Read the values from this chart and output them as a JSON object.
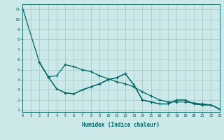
{
  "xlabel": "Humidex (Indice chaleur)",
  "bg_color": "#cce8e8",
  "grid_color": "#a8cccc",
  "line_color": "#006666",
  "curve1_x": [
    0,
    1,
    2,
    3,
    4,
    5,
    6,
    7,
    8,
    9,
    10,
    11,
    12,
    13,
    14,
    15,
    16,
    17,
    18,
    19,
    20,
    21,
    22,
    23
  ],
  "curve1_y": [
    11.2,
    8.4,
    5.7,
    4.3,
    3.1,
    2.7,
    2.6,
    3.0,
    3.3,
    3.6,
    4.0,
    4.2,
    4.6,
    3.5,
    2.0,
    1.8,
    1.6,
    1.6,
    2.0,
    2.0,
    1.6,
    1.5,
    1.5,
    1.1
  ],
  "curve2_x": [
    2,
    3,
    4,
    5,
    6,
    7,
    8,
    9,
    10,
    11,
    12,
    13,
    14,
    15,
    16,
    17,
    18,
    19,
    20,
    21,
    22,
    23
  ],
  "curve2_y": [
    5.7,
    4.3,
    4.4,
    5.5,
    5.3,
    5.0,
    4.8,
    4.4,
    4.1,
    3.8,
    3.6,
    3.3,
    2.8,
    2.4,
    2.0,
    1.8,
    1.8,
    1.8,
    1.7,
    1.6,
    1.5,
    1.1
  ],
  "curve3_x": [
    2,
    3,
    4,
    5,
    6,
    7,
    8,
    9,
    10,
    11,
    12,
    13,
    14,
    15,
    16,
    17,
    18,
    19,
    20,
    21,
    22,
    23
  ],
  "curve3_y": [
    5.7,
    4.3,
    3.1,
    2.7,
    2.6,
    3.0,
    3.3,
    3.6,
    4.0,
    4.2,
    4.6,
    3.5,
    2.0,
    1.8,
    1.6,
    1.6,
    2.0,
    2.0,
    1.6,
    1.5,
    1.5,
    1.1
  ],
  "xlim": [
    0,
    23
  ],
  "ylim": [
    0.8,
    11.5
  ],
  "yticks": [
    1,
    2,
    3,
    4,
    5,
    6,
    7,
    8,
    9,
    10,
    11
  ],
  "xticks": [
    0,
    1,
    2,
    3,
    4,
    5,
    6,
    7,
    8,
    9,
    10,
    11,
    12,
    13,
    14,
    15,
    16,
    17,
    18,
    19,
    20,
    21,
    22,
    23
  ]
}
